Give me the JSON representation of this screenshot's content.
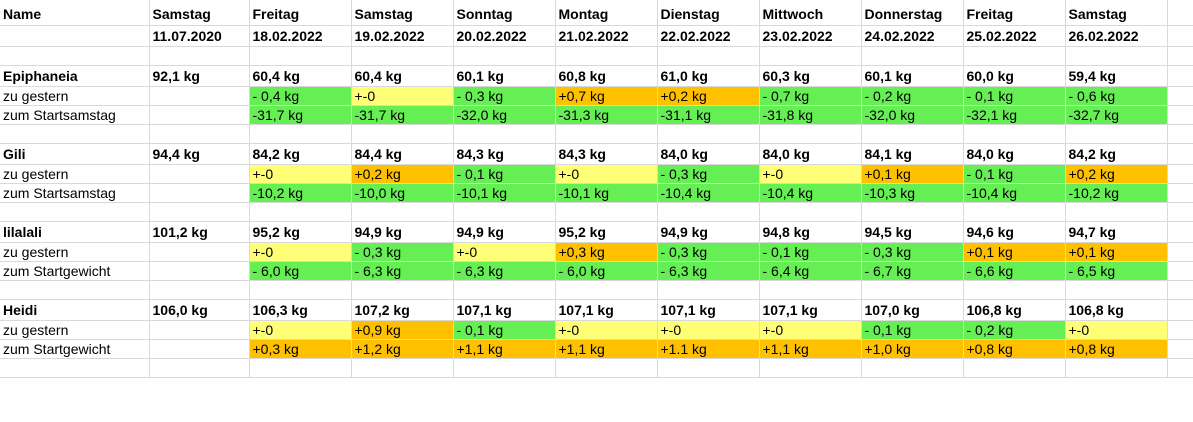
{
  "colors": {
    "green": "#66ee55",
    "yellow": "#ffff77",
    "orange": "#ffc000"
  },
  "header": {
    "name": "Name",
    "days": [
      {
        "weekday": "Samstag",
        "date": "11.07.2020"
      },
      {
        "weekday": "Freitag",
        "date": "18.02.2022"
      },
      {
        "weekday": "Samstag",
        "date": "19.02.2022"
      },
      {
        "weekday": "Sonntag",
        "date": "20.02.2022"
      },
      {
        "weekday": "Montag",
        "date": "21.02.2022"
      },
      {
        "weekday": "Dienstag",
        "date": "22.02.2022"
      },
      {
        "weekday": "Mittwoch",
        "date": "23.02.2022"
      },
      {
        "weekday": "Donnerstag",
        "date": "24.02.2022"
      },
      {
        "weekday": "Freitag",
        "date": "25.02.2022"
      },
      {
        "weekday": "Samstag",
        "date": "26.02.2022"
      }
    ]
  },
  "people": [
    {
      "name": "Epiphaneia",
      "start": "92,1 kg",
      "weights": [
        "60,4 kg",
        "60,4 kg",
        "60,1 kg",
        "60,8 kg",
        "61,0 kg",
        "60,3 kg",
        "60,1 kg",
        "60,0 kg",
        "59,4 kg"
      ],
      "diff_label": "zu gestern",
      "diff": [
        {
          "v": "- 0,4 kg",
          "c": "green"
        },
        {
          "v": "+-0",
          "c": "yellow"
        },
        {
          "v": "- 0,3 kg",
          "c": "green"
        },
        {
          "v": "+0,7 kg",
          "c": "orange"
        },
        {
          "v": "+0,2 kg",
          "c": "orange"
        },
        {
          "v": "- 0,7 kg",
          "c": "green"
        },
        {
          "v": "- 0,2 kg",
          "c": "green"
        },
        {
          "v": "- 0,1 kg",
          "c": "green"
        },
        {
          "v": "- 0,6 kg",
          "c": "green"
        }
      ],
      "total_label": "zum Startsamstag",
      "total": [
        {
          "v": "-31,7 kg",
          "c": "green"
        },
        {
          "v": "-31,7 kg",
          "c": "green"
        },
        {
          "v": "-32,0 kg",
          "c": "green"
        },
        {
          "v": "-31,3 kg",
          "c": "green"
        },
        {
          "v": "-31,1 kg",
          "c": "green"
        },
        {
          "v": "-31,8 kg",
          "c": "green"
        },
        {
          "v": "-32,0 kg",
          "c": "green"
        },
        {
          "v": "-32,1 kg",
          "c": "green"
        },
        {
          "v": "-32,7 kg",
          "c": "green"
        }
      ]
    },
    {
      "name": "Gili",
      "start": "94,4 kg",
      "weights": [
        "84,2 kg",
        "84,4 kg",
        "84,3 kg",
        "84,3 kg",
        "84,0 kg",
        "84,0 kg",
        "84,1 kg",
        "84,0 kg",
        "84,2 kg"
      ],
      "diff_label": "zu gestern",
      "diff": [
        {
          "v": "+-0",
          "c": "yellow"
        },
        {
          "v": "+0,2 kg",
          "c": "orange"
        },
        {
          "v": "- 0,1 kg",
          "c": "green"
        },
        {
          "v": "+-0",
          "c": "yellow"
        },
        {
          "v": "- 0,3 kg",
          "c": "green"
        },
        {
          "v": "+-0",
          "c": "yellow"
        },
        {
          "v": "+0,1 kg",
          "c": "orange"
        },
        {
          "v": "- 0,1 kg",
          "c": "green"
        },
        {
          "v": "+0,2 kg",
          "c": "orange"
        }
      ],
      "total_label": "zum Startsamstag",
      "total": [
        {
          "v": "-10,2 kg",
          "c": "green"
        },
        {
          "v": "-10,0 kg",
          "c": "green"
        },
        {
          "v": "-10,1 kg",
          "c": "green"
        },
        {
          "v": "-10,1 kg",
          "c": "green"
        },
        {
          "v": "-10,4 kg",
          "c": "green"
        },
        {
          "v": "-10,4 kg",
          "c": "green"
        },
        {
          "v": "-10,3 kg",
          "c": "green"
        },
        {
          "v": "-10,4 kg",
          "c": "green"
        },
        {
          "v": "-10,2 kg",
          "c": "green"
        }
      ]
    },
    {
      "name": "lilalali",
      "start": "101,2 kg",
      "weights": [
        "95,2 kg",
        "94,9 kg",
        "94,9 kg",
        "95,2 kg",
        "94,9 kg",
        "94,8 kg",
        "94,5 kg",
        "94,6 kg",
        "94,7 kg"
      ],
      "diff_label": "zu gestern",
      "diff": [
        {
          "v": "+-0",
          "c": "yellow"
        },
        {
          "v": "- 0,3 kg",
          "c": "green"
        },
        {
          "v": "+-0",
          "c": "yellow"
        },
        {
          "v": "+0,3 kg",
          "c": "orange"
        },
        {
          "v": "- 0,3 kg",
          "c": "green"
        },
        {
          "v": "- 0,1 kg",
          "c": "green"
        },
        {
          "v": "- 0,3 kg",
          "c": "green"
        },
        {
          "v": "+0,1 kg",
          "c": "orange"
        },
        {
          "v": "+0,1 kg",
          "c": "orange"
        }
      ],
      "total_label": "zum Startgewicht",
      "total": [
        {
          "v": "- 6,0 kg",
          "c": "green"
        },
        {
          "v": "- 6,3 kg",
          "c": "green"
        },
        {
          "v": "- 6,3 kg",
          "c": "green"
        },
        {
          "v": "- 6,0 kg",
          "c": "green"
        },
        {
          "v": "- 6,3 kg",
          "c": "green"
        },
        {
          "v": "- 6,4 kg",
          "c": "green"
        },
        {
          "v": "- 6,7 kg",
          "c": "green"
        },
        {
          "v": "- 6,6 kg",
          "c": "green"
        },
        {
          "v": "- 6,5 kg",
          "c": "green"
        }
      ]
    },
    {
      "name": "Heidi",
      "start": "106,0 kg",
      "weights": [
        "106,3 kg",
        "107,2 kg",
        "107,1 kg",
        "107,1 kg",
        "107,1 kg",
        "107,1 kg",
        "107,0 kg",
        "106,8 kg",
        "106,8 kg"
      ],
      "diff_label": "zu gestern",
      "diff": [
        {
          "v": "+-0",
          "c": "yellow"
        },
        {
          "v": "+0,9 kg",
          "c": "orange"
        },
        {
          "v": "- 0,1 kg",
          "c": "green"
        },
        {
          "v": "+-0",
          "c": "yellow"
        },
        {
          "v": "+-0",
          "c": "yellow"
        },
        {
          "v": "+-0",
          "c": "yellow"
        },
        {
          "v": "- 0,1 kg",
          "c": "green"
        },
        {
          "v": "- 0,2 kg",
          "c": "green"
        },
        {
          "v": "+-0",
          "c": "yellow"
        }
      ],
      "total_label": "zum Startgewicht",
      "total": [
        {
          "v": "+0,3 kg",
          "c": "orange"
        },
        {
          "v": "+1,2 kg",
          "c": "orange"
        },
        {
          "v": "+1,1 kg",
          "c": "orange"
        },
        {
          "v": "+1,1 kg",
          "c": "orange"
        },
        {
          "v": "+1.1 kg",
          "c": "orange"
        },
        {
          "v": "+1,1 kg",
          "c": "orange"
        },
        {
          "v": "+1,0 kg",
          "c": "orange"
        },
        {
          "v": "+0,8 kg",
          "c": "orange"
        },
        {
          "v": "+0,8 kg",
          "c": "orange"
        }
      ]
    }
  ]
}
